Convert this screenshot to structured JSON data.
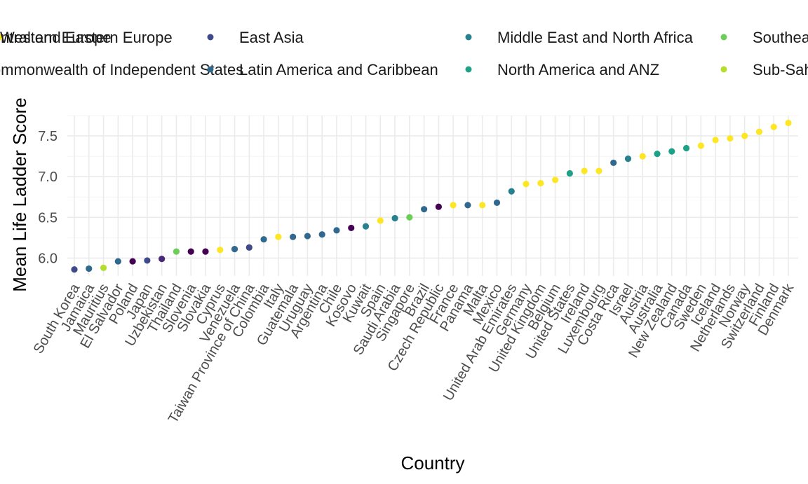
{
  "chart_data": {
    "type": "scatter",
    "xlabel": "Country",
    "ylabel": "Mean Life Ladder Score",
    "ylim": [
      5.78,
      7.75
    ],
    "yticks": [
      6.0,
      6.5,
      7.0,
      7.5
    ],
    "ytick_labels": [
      "6.0",
      "6.5",
      "7.0",
      "7.5"
    ],
    "grid": true,
    "legend_position": "top",
    "legend": [
      {
        "label": "Central and Eastern Europe",
        "color": "#440154"
      },
      {
        "label": "Commonwealth of Independent States",
        "color": "#482878"
      },
      {
        "label": "East Asia",
        "color": "#3e4a89"
      },
      {
        "label": "Latin America and Caribbean",
        "color": "#31688e"
      },
      {
        "label": "Middle East and North Africa",
        "color": "#26828e"
      },
      {
        "label": "North America and ANZ",
        "color": "#1fa187"
      },
      {
        "label": "Southeast Asia",
        "color": "#6dcd59"
      },
      {
        "label": "Sub-Saharan Africa",
        "color": "#b4de2c"
      },
      {
        "label": "Western Europe",
        "color": "#fde725"
      }
    ],
    "points": [
      {
        "country": "South Korea",
        "y": 5.86,
        "region": "East Asia"
      },
      {
        "country": "Jamaica",
        "y": 5.87,
        "region": "Latin America and Caribbean"
      },
      {
        "country": "Mauritius",
        "y": 5.88,
        "region": "Sub-Saharan Africa"
      },
      {
        "country": "El Salvador",
        "y": 5.96,
        "region": "Latin America and Caribbean"
      },
      {
        "country": "Poland",
        "y": 5.96,
        "region": "Central and Eastern Europe"
      },
      {
        "country": "Japan",
        "y": 5.97,
        "region": "East Asia"
      },
      {
        "country": "Uzbekistan",
        "y": 5.99,
        "region": "Commonwealth of Independent States"
      },
      {
        "country": "Thailand",
        "y": 6.08,
        "region": "Southeast Asia"
      },
      {
        "country": "Slovenia",
        "y": 6.08,
        "region": "Central and Eastern Europe"
      },
      {
        "country": "Slovakia",
        "y": 6.08,
        "region": "Central and Eastern Europe"
      },
      {
        "country": "Cyprus",
        "y": 6.1,
        "region": "Western Europe"
      },
      {
        "country": "Venezuela",
        "y": 6.11,
        "region": "Latin America and Caribbean"
      },
      {
        "country": "Taiwan Province of China",
        "y": 6.13,
        "region": "East Asia"
      },
      {
        "country": "Colombia",
        "y": 6.23,
        "region": "Latin America and Caribbean"
      },
      {
        "country": "Italy",
        "y": 6.26,
        "region": "Western Europe"
      },
      {
        "country": "Guatemala",
        "y": 6.26,
        "region": "Latin America and Caribbean"
      },
      {
        "country": "Uruguay",
        "y": 6.27,
        "region": "Latin America and Caribbean"
      },
      {
        "country": "Argentina",
        "y": 6.29,
        "region": "Latin America and Caribbean"
      },
      {
        "country": "Chile",
        "y": 6.34,
        "region": "Latin America and Caribbean"
      },
      {
        "country": "Kosovo",
        "y": 6.37,
        "region": "Central and Eastern Europe"
      },
      {
        "country": "Kuwait",
        "y": 6.39,
        "region": "Middle East and North Africa"
      },
      {
        "country": "Spain",
        "y": 6.46,
        "region": "Western Europe"
      },
      {
        "country": "Saudi Arabia",
        "y": 6.49,
        "region": "Middle East and North Africa"
      },
      {
        "country": "Singapore",
        "y": 6.5,
        "region": "Southeast Asia"
      },
      {
        "country": "Brazil",
        "y": 6.6,
        "region": "Latin America and Caribbean"
      },
      {
        "country": "Czech Republic",
        "y": 6.63,
        "region": "Central and Eastern Europe"
      },
      {
        "country": "France",
        "y": 6.65,
        "region": "Western Europe"
      },
      {
        "country": "Panama",
        "y": 6.65,
        "region": "Latin America and Caribbean"
      },
      {
        "country": "Malta",
        "y": 6.65,
        "region": "Western Europe"
      },
      {
        "country": "Mexico",
        "y": 6.68,
        "region": "Latin America and Caribbean"
      },
      {
        "country": "United Arab Emirates",
        "y": 6.82,
        "region": "Middle East and North Africa"
      },
      {
        "country": "Germany",
        "y": 6.91,
        "region": "Western Europe"
      },
      {
        "country": "United Kingdom",
        "y": 6.92,
        "region": "Western Europe"
      },
      {
        "country": "Belgium",
        "y": 6.96,
        "region": "Western Europe"
      },
      {
        "country": "United States",
        "y": 7.04,
        "region": "North America and ANZ"
      },
      {
        "country": "Ireland",
        "y": 7.07,
        "region": "Western Europe"
      },
      {
        "country": "Luxembourg",
        "y": 7.07,
        "region": "Western Europe"
      },
      {
        "country": "Costa Rica",
        "y": 7.17,
        "region": "Latin America and Caribbean"
      },
      {
        "country": "Israel",
        "y": 7.22,
        "region": "Middle East and North Africa"
      },
      {
        "country": "Austria",
        "y": 7.25,
        "region": "Western Europe"
      },
      {
        "country": "Australia",
        "y": 7.28,
        "region": "North America and ANZ"
      },
      {
        "country": "New Zealand",
        "y": 7.31,
        "region": "North America and ANZ"
      },
      {
        "country": "Canada",
        "y": 7.35,
        "region": "North America and ANZ"
      },
      {
        "country": "Sweden",
        "y": 7.38,
        "region": "Western Europe"
      },
      {
        "country": "Iceland",
        "y": 7.45,
        "region": "Western Europe"
      },
      {
        "country": "Netherlands",
        "y": 7.47,
        "region": "Western Europe"
      },
      {
        "country": "Norway",
        "y": 7.5,
        "region": "Western Europe"
      },
      {
        "country": "Switzerland",
        "y": 7.55,
        "region": "Western Europe"
      },
      {
        "country": "Finland",
        "y": 7.61,
        "region": "Western Europe"
      },
      {
        "country": "Denmark",
        "y": 7.66,
        "region": "Western Europe"
      }
    ]
  }
}
